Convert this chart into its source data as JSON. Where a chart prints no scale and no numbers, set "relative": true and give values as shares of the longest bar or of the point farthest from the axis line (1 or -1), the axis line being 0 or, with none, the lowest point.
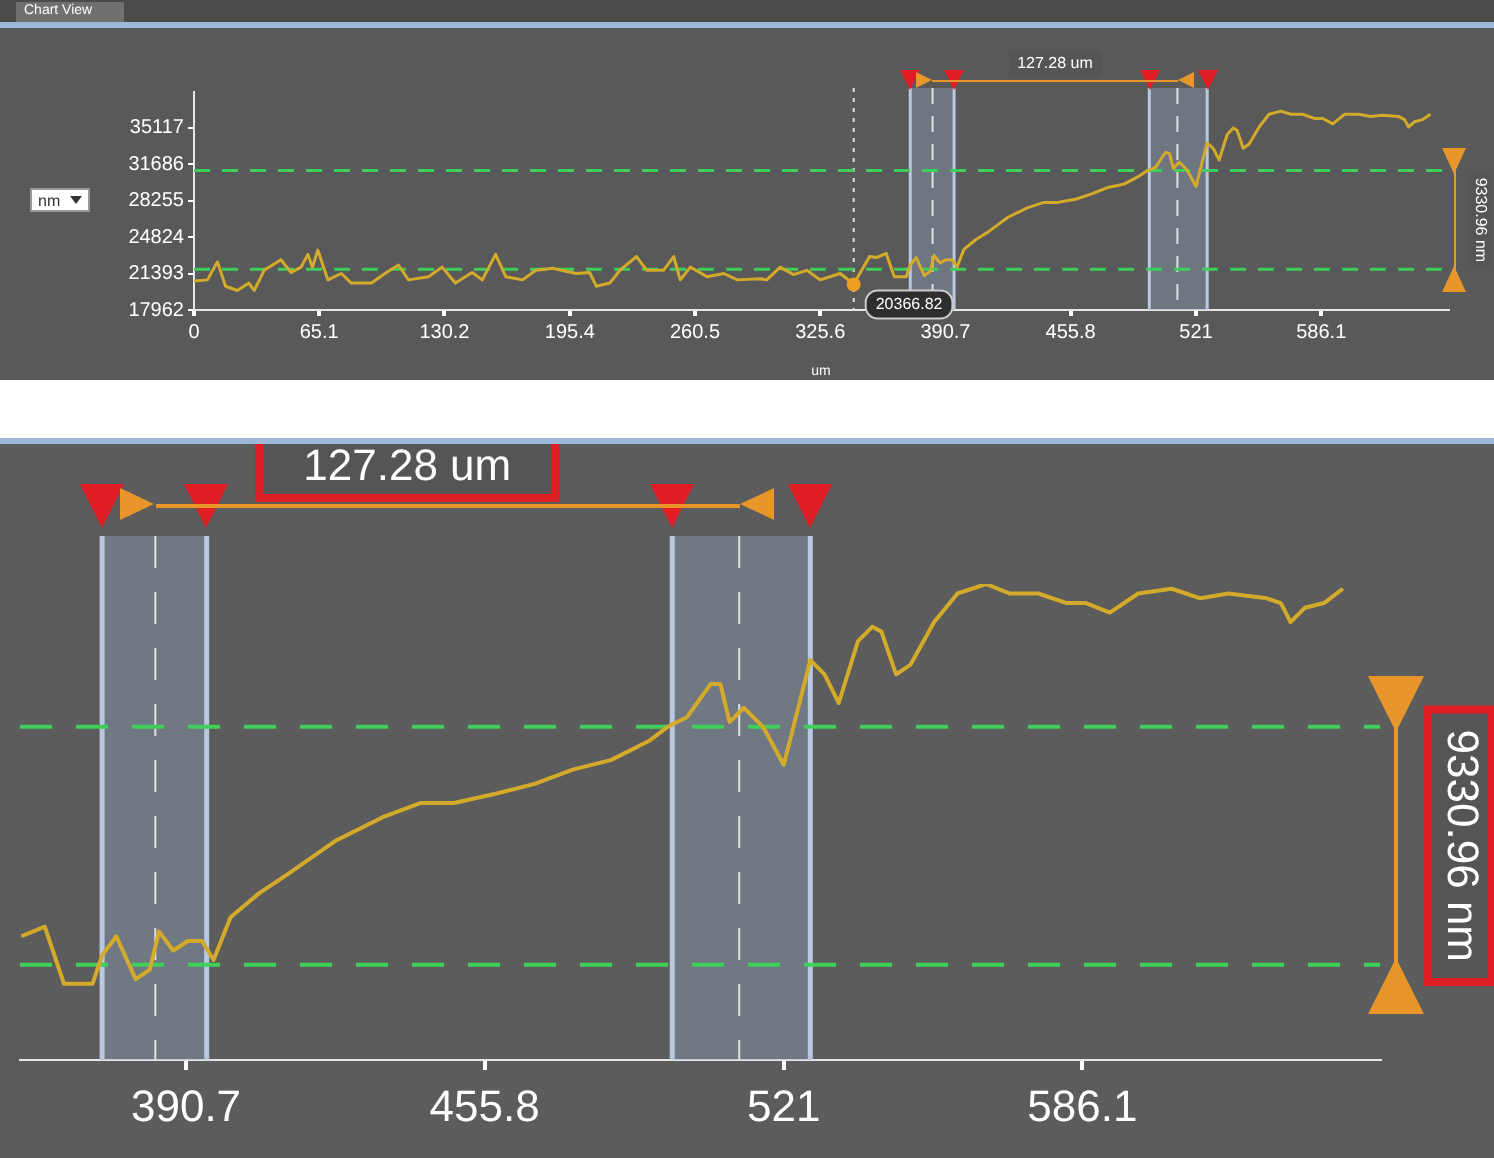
{
  "chart_data": [
    {
      "type": "line",
      "title": "Chart View",
      "xlabel": "um",
      "ylabel": "nm",
      "x": [
        0,
        7,
        12.2,
        16.4,
        22.6,
        28.5,
        31.3,
        36.5,
        45.2,
        50.5,
        55.7,
        59.2,
        61.6,
        64.4,
        69.6,
        76.6,
        81.8,
        92.3,
        99.3,
        106.3,
        111.5,
        122,
        129,
        135.9,
        144.6,
        149.9,
        156.8,
        162.1,
        170.8,
        177.8,
        186.5,
        198.7,
        205.7,
        209.2,
        216.2,
        221.4,
        230.1,
        235.4,
        244.1,
        249.4,
        252.8,
        258.1,
        266.8,
        275.5,
        282.5,
        294.7,
        297.8,
        304.8,
        311.7,
        318.6,
        325.6,
        336,
        343,
        351.3,
        354.8,
        359.9,
        364.1,
        370.3,
        372.4,
        375.5,
        379.7,
        382.8,
        384.8,
        387.9,
        391.1,
        394.2,
        396.7,
        400.4,
        406.6,
        412.8,
        423.2,
        433.6,
        441.9,
        449.1,
        458.4,
        466.7,
        475,
        483.3,
        491.6,
        495.7,
        499.9,
        505.1,
        507.2,
        509.2,
        512.3,
        516.5,
        521,
        524.7,
        526.8,
        529.9,
        533,
        537.2,
        540.3,
        542.3,
        545.5,
        548.6,
        553.8,
        558.9,
        565.1,
        570.3,
        576.5,
        582.7,
        586.9,
        592.1,
        598.3,
        605.6,
        611.8,
        618,
        626.3,
        629.4,
        631.5,
        634.6,
        638.8,
        642.9
      ],
      "series": [
        {
          "color": "#d4aa2a",
          "values": [
            20700,
            20800,
            22500,
            20200,
            19800,
            20500,
            19800,
            21700,
            22700,
            21500,
            22000,
            23200,
            22000,
            23600,
            20800,
            21400,
            20500,
            20500,
            21400,
            22200,
            20800,
            21100,
            22000,
            20500,
            21500,
            20800,
            23200,
            21100,
            20800,
            21700,
            21900,
            21400,
            21500,
            20200,
            20500,
            21700,
            23000,
            21700,
            21700,
            23000,
            20800,
            22000,
            21100,
            21400,
            20800,
            20900,
            20800,
            22000,
            21300,
            21700,
            20800,
            21400,
            20400,
            23000,
            22900,
            23300,
            21100,
            21100,
            22200,
            22900,
            21200,
            21600,
            23100,
            22400,
            22700,
            22700,
            22000,
            23700,
            24600,
            25300,
            26700,
            27600,
            28100,
            28100,
            28400,
            28900,
            29500,
            29800,
            30600,
            31100,
            31400,
            32800,
            32700,
            31300,
            31900,
            31100,
            29600,
            32300,
            33700,
            33200,
            32100,
            34500,
            35100,
            34900,
            33200,
            33600,
            35200,
            36400,
            36700,
            36400,
            36400,
            36000,
            36000,
            35500,
            36400,
            36400,
            36200,
            36300,
            36200,
            35900,
            35200,
            35700,
            35900,
            36400
          ]
        }
      ],
      "xlim": [
        0,
        652
      ],
      "xticks": [
        0,
        65.1,
        130.2,
        195.4,
        260.5,
        325.6,
        390.7,
        455.8,
        521,
        586.1
      ],
      "ylim": [
        17962,
        38500
      ],
      "yticks": [
        17962,
        21393,
        24824,
        28255,
        31686,
        35117
      ],
      "legend": false,
      "bands": [
        {
          "axis": "x",
          "from": 372.4,
          "to": 395.2,
          "color": "#8fa3bf"
        },
        {
          "axis": "x",
          "from": 496.7,
          "to": 526.8,
          "color": "#8fa3bf"
        }
      ],
      "ref_lines": [
        {
          "axis": "x",
          "value": 384,
          "color": "#e0e0e0",
          "line_style": "dashed"
        },
        {
          "axis": "x",
          "value": 511.3,
          "color": "#e0e0e0",
          "line_style": "dashed"
        },
        {
          "axis": "x",
          "value": 343,
          "color": "#e0e0e0",
          "line_style": "dotted"
        },
        {
          "axis": "y",
          "value": 21800,
          "color": "#3ecf5a",
          "line_style": "dashed"
        },
        {
          "axis": "y",
          "value": 31100,
          "color": "#3ecf5a",
          "line_style": "dashed"
        }
      ],
      "annotations": [
        "127.28 um",
        "9330.96 nm",
        {
          "text": "20366.82",
          "x": 343,
          "y": 20366.82
        }
      ]
    },
    {
      "type": "line",
      "relative": true,
      "x": [
        354.8,
        359.9,
        364.1,
        370.3,
        372.4,
        375.5,
        379.7,
        382.8,
        384.8,
        387.9,
        391.1,
        394.2,
        396.7,
        400.4,
        406.6,
        412.8,
        423.2,
        433.6,
        441.9,
        449.1,
        458.4,
        466.7,
        475,
        483.3,
        491.6,
        495.7,
        499.9,
        505.1,
        507.2,
        509.2,
        512.3,
        516.5,
        521,
        524.7,
        526.8,
        529.9,
        533,
        537.2,
        540.3,
        542.3,
        545.5,
        548.6,
        553.8,
        558.9,
        565.1,
        570.3,
        576.5,
        582.7,
        586.9,
        592.1,
        598.3,
        605.6,
        611.8,
        618,
        626.3,
        629.4,
        631.5,
        634.6,
        638.8,
        642.9
      ],
      "series": [
        {
          "color": "#d4aa2a",
          "values": [
            0.26,
            0.28,
            0.16,
            0.16,
            0.22,
            0.26,
            0.17,
            0.19,
            0.27,
            0.23,
            0.25,
            0.25,
            0.21,
            0.3,
            0.35,
            0.39,
            0.46,
            0.51,
            0.54,
            0.54,
            0.56,
            0.58,
            0.61,
            0.63,
            0.67,
            0.7,
            0.72,
            0.79,
            0.79,
            0.71,
            0.74,
            0.7,
            0.62,
            0.76,
            0.84,
            0.81,
            0.75,
            0.88,
            0.91,
            0.9,
            0.81,
            0.83,
            0.92,
            0.98,
            1,
            0.98,
            0.98,
            0.96,
            0.96,
            0.94,
            0.98,
            0.99,
            0.97,
            0.98,
            0.97,
            0.96,
            0.92,
            0.95,
            0.96,
            0.99
          ]
        }
      ],
      "xlim": [
        354.5,
        651
      ],
      "xticks": [
        390.7,
        455.8,
        521,
        586.1
      ],
      "tick_labels": "x",
      "legend": false,
      "bands": [
        {
          "axis": "x",
          "from": 372.4,
          "to": 395.2,
          "color": "#8fa3bf"
        },
        {
          "axis": "x",
          "from": 496.7,
          "to": 526.8,
          "color": "#8fa3bf"
        }
      ],
      "ref_lines": [
        {
          "axis": "x",
          "value": 384,
          "color": "#e0e0e0",
          "line_style": "dashed"
        },
        {
          "axis": "x",
          "value": 511.3,
          "color": "#e0e0e0",
          "line_style": "dashed"
        },
        {
          "axis": "y",
          "value": 0.2,
          "color": "#3ecf5a",
          "line_style": "dashed"
        },
        {
          "axis": "y",
          "value": 0.7,
          "color": "#3ecf5a",
          "line_style": "dashed"
        }
      ],
      "annotations": [
        "127.28 um",
        "9330.96 nm"
      ]
    }
  ]
}
